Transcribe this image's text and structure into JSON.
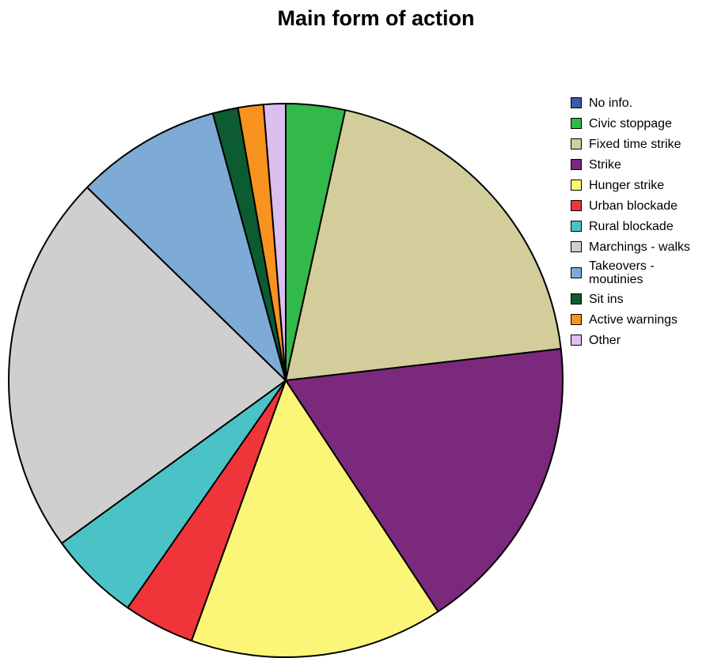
{
  "chart_data": {
    "type": "pie",
    "title": "Main form of action",
    "legend_position": "right",
    "slices": [
      {
        "label": "No info.",
        "value": 0,
        "color": "#3a5ba7"
      },
      {
        "label": "Civic stoppage",
        "value": 3.5,
        "color": "#33b84a"
      },
      {
        "label": "Fixed time strike",
        "value": 20.0,
        "color": "#d3cd9b"
      },
      {
        "label": "Strike",
        "value": 17.8,
        "color": "#7b297c"
      },
      {
        "label": "Hunger strike",
        "value": 15.0,
        "color": "#fbf677"
      },
      {
        "label": "Urban blockade",
        "value": 4.2,
        "color": "#ef353a"
      },
      {
        "label": "Rural blockade",
        "value": 5.4,
        "color": "#4bc2c5"
      },
      {
        "label": "Marchings - walks",
        "value": 22.6,
        "color": "#cfcfcf"
      },
      {
        "label": "Takeovers - moutinies",
        "value": 8.6,
        "color": "#7eaad6"
      },
      {
        "label": "Sit ins",
        "value": 1.5,
        "color": "#0d5b30"
      },
      {
        "label": "Active warnings",
        "value": 1.5,
        "color": "#f7931e"
      },
      {
        "label": "Other",
        "value": 1.3,
        "color": "#dcbef0"
      }
    ]
  }
}
